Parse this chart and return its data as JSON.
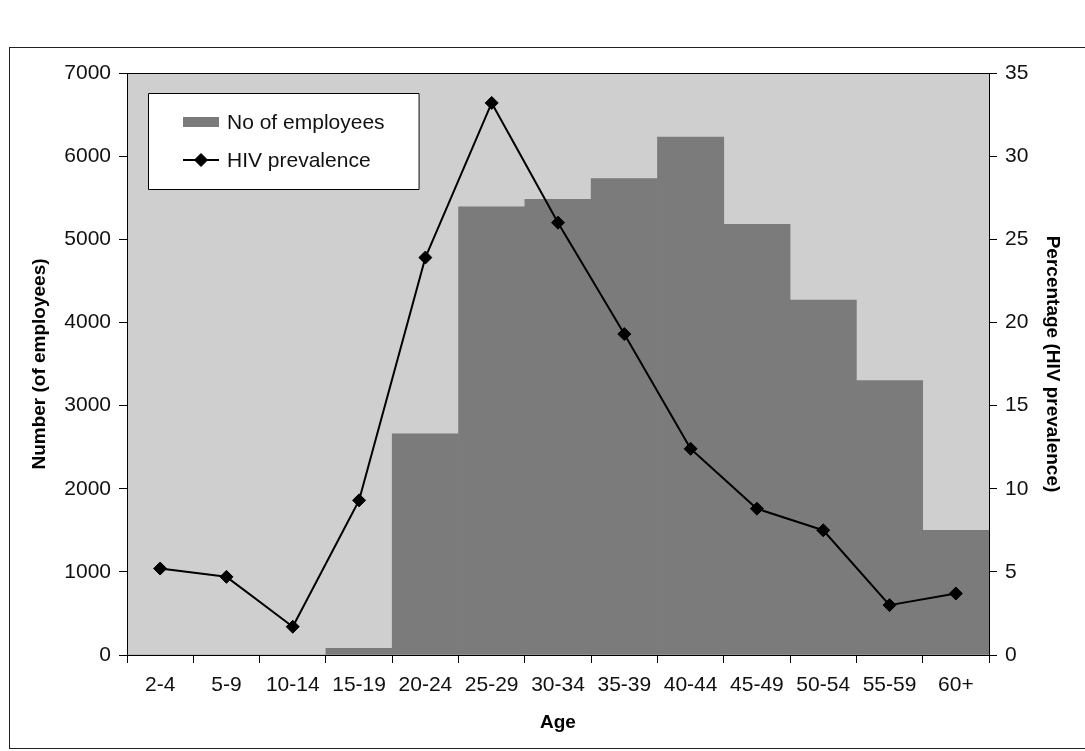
{
  "chart_data": {
    "type": "bar",
    "xlabel": "Age",
    "ylabel": "Number (of employees)",
    "y2label": "Percentage (HIV prevalence)",
    "categories": [
      "2-4",
      "5-9",
      "10-14",
      "15-19",
      "20-24",
      "25-29",
      "30-34",
      "35-39",
      "40-44",
      "45-49",
      "50-54",
      "55-59",
      "60+"
    ],
    "series": [
      {
        "name": "No of employees",
        "color": "#7b7b7b",
        "values": [
          0,
          0,
          0,
          80,
          2660,
          5390,
          5480,
          5730,
          6230,
          5180,
          4270,
          3300,
          1500
        ]
      },
      {
        "name": "HIV prevalence",
        "type": "line",
        "axis": "y2",
        "color": "#000000",
        "values": [
          5.2,
          4.7,
          1.7,
          9.3,
          23.9,
          33.2,
          26,
          19.3,
          12.4,
          8.8,
          7.5,
          3.0,
          3.7
        ]
      }
    ],
    "ylim": [
      0,
      7000
    ],
    "yticks": [
      0,
      1000,
      2000,
      3000,
      4000,
      5000,
      6000,
      7000
    ],
    "y2lim": [
      0,
      35
    ],
    "y2ticks": [
      0,
      5,
      10,
      15,
      20,
      25,
      30,
      35
    ],
    "legend": "top left",
    "marker": "diamond",
    "grid": false
  }
}
